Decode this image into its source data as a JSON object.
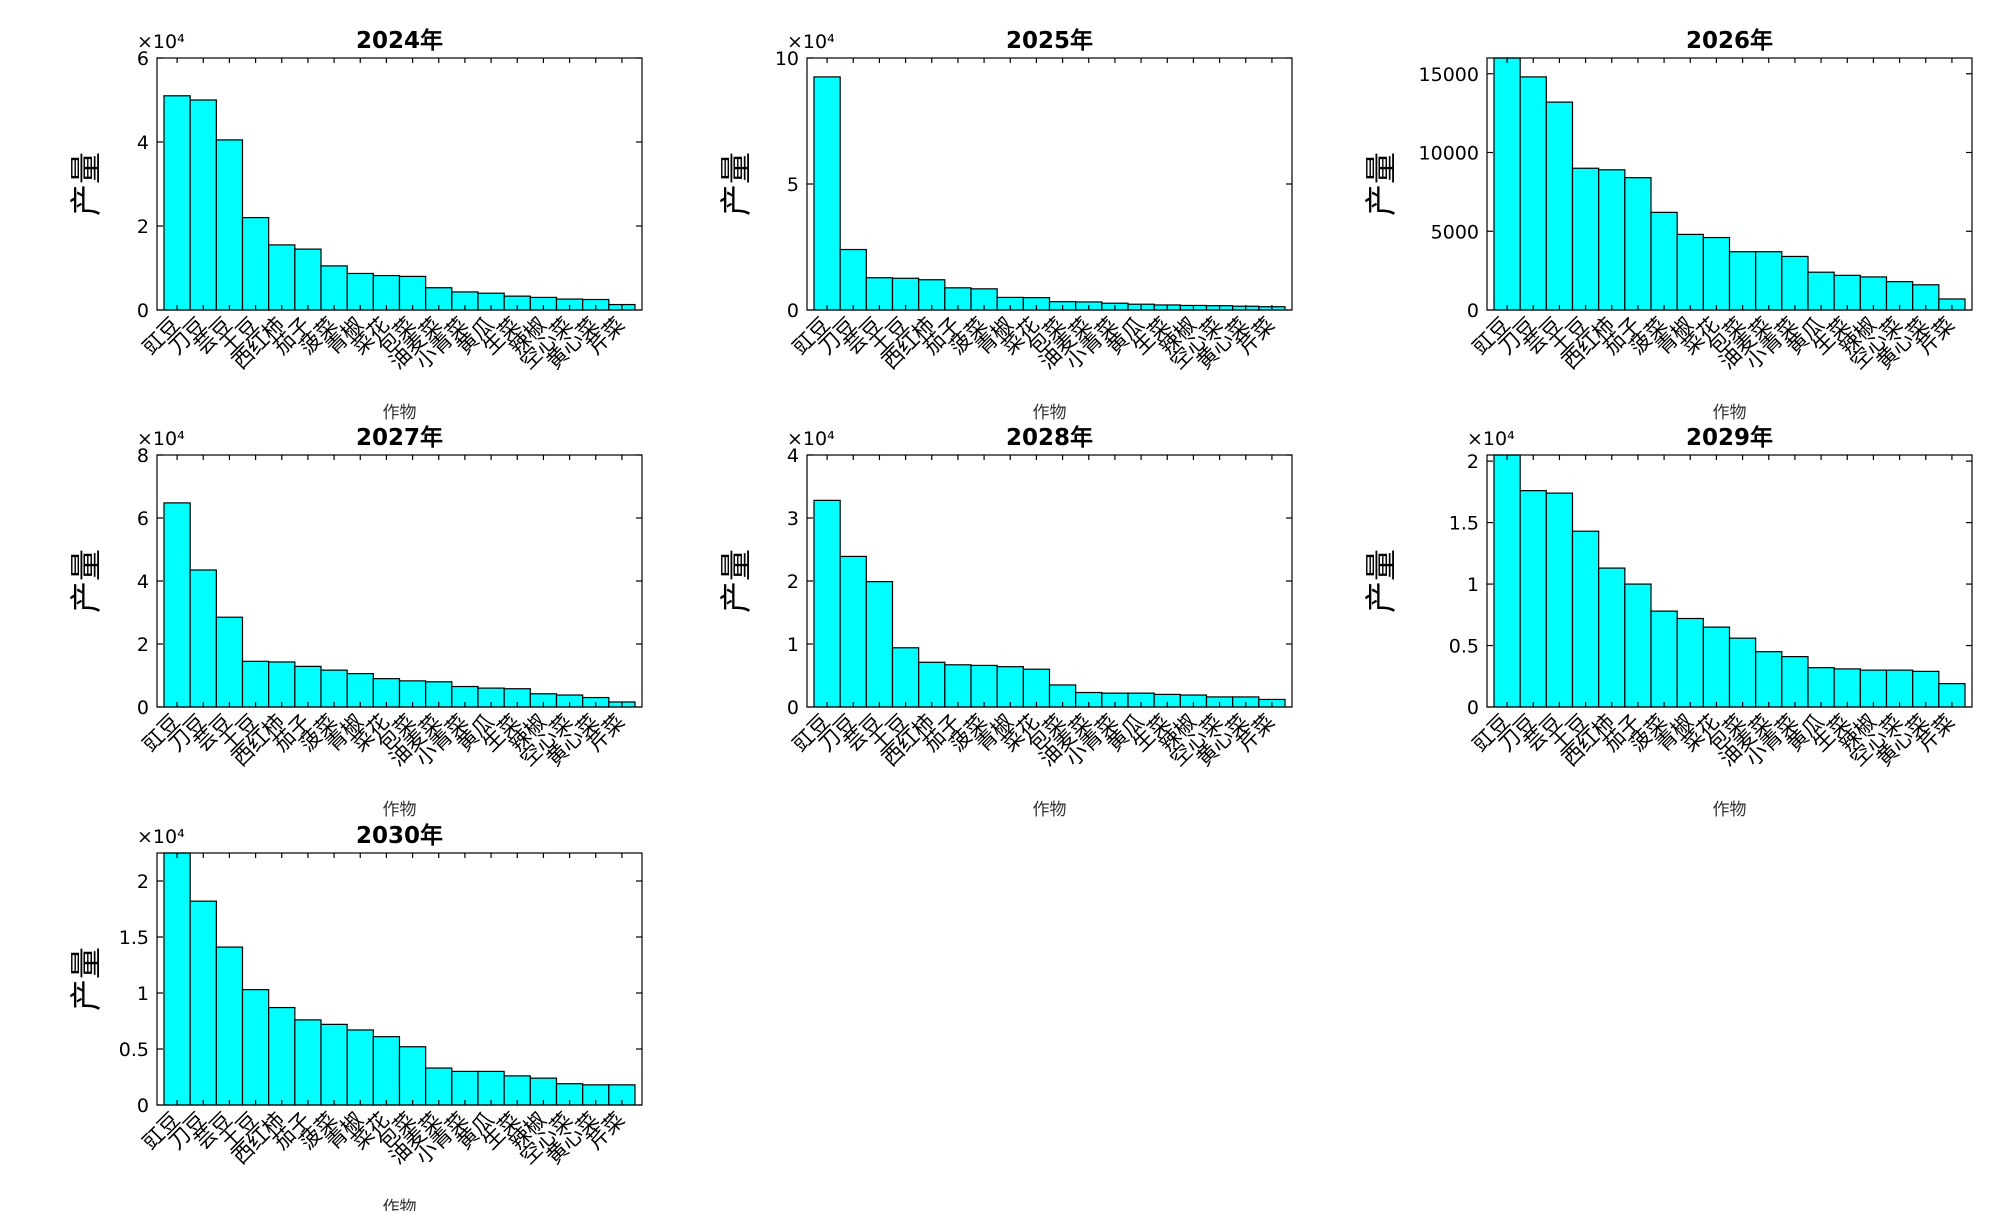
{
  "figure": {
    "background": "#ffffff",
    "bar_color": "#00ffff",
    "edge_color": "#000000"
  },
  "chart_data": [
    {
      "type": "bar",
      "title": "2024年",
      "xlabel": "作物",
      "ylabel": "产量",
      "exponent_label": "×10⁴",
      "categories": [
        "豇豆",
        "刀豆",
        "芸豆",
        "土豆",
        "西红柿",
        "茄子",
        "菠菜",
        "青椒",
        "菜花",
        "包菜",
        "油麦菜",
        "小青菜",
        "黄瓜",
        "生菜",
        "辣椒",
        "空心菜",
        "黄心菜",
        "芹菜"
      ],
      "values": [
        51000,
        50000,
        40500,
        22000,
        15500,
        14500,
        10500,
        8700,
        8200,
        8000,
        5300,
        4300,
        4000,
        3300,
        3000,
        2600,
        2500,
        1300
      ],
      "ylim": [
        0,
        60000
      ],
      "yticks": [
        0,
        20000,
        40000,
        60000
      ],
      "ytick_labels": [
        "0",
        "2",
        "4",
        "6"
      ]
    },
    {
      "type": "bar",
      "title": "2025年",
      "xlabel": "作物",
      "ylabel": "产量",
      "exponent_label": "×10⁴",
      "categories": [
        "豇豆",
        "刀豆",
        "芸豆",
        "土豆",
        "西红柿",
        "茄子",
        "菠菜",
        "青椒",
        "菜花",
        "包菜",
        "油麦菜",
        "小青菜",
        "黄瓜",
        "生菜",
        "辣椒",
        "空心菜",
        "黄心菜",
        "芹菜"
      ],
      "values": [
        92500,
        24000,
        12800,
        12600,
        12000,
        8800,
        8400,
        5000,
        4900,
        3300,
        3200,
        2700,
        2300,
        2000,
        1800,
        1700,
        1500,
        1300
      ],
      "ylim": [
        0,
        100000
      ],
      "yticks": [
        0,
        50000,
        100000
      ],
      "ytick_labels": [
        "0",
        "5",
        "10"
      ]
    },
    {
      "type": "bar",
      "title": "2026年",
      "xlabel": "作物",
      "ylabel": "产量",
      "exponent_label": "",
      "categories": [
        "豇豆",
        "刀豆",
        "芸豆",
        "土豆",
        "西红柿",
        "茄子",
        "菠菜",
        "青椒",
        "菜花",
        "包菜",
        "油麦菜",
        "小青菜",
        "黄瓜",
        "生菜",
        "辣椒",
        "空心菜",
        "黄心菜",
        "芹菜"
      ],
      "values": [
        16000,
        14800,
        13200,
        9000,
        8900,
        8400,
        6200,
        4800,
        4600,
        3700,
        3700,
        3400,
        2400,
        2200,
        2100,
        1800,
        1600,
        700
      ],
      "ylim": [
        0,
        16000
      ],
      "yticks": [
        0,
        5000,
        10000,
        15000
      ],
      "ytick_labels": [
        "0",
        "5000",
        "10000",
        "15000"
      ]
    },
    {
      "type": "bar",
      "title": "2027年",
      "xlabel": "作物",
      "ylabel": "产量",
      "exponent_label": "×10⁴",
      "categories": [
        "豇豆",
        "刀豆",
        "芸豆",
        "土豆",
        "西红柿",
        "茄子",
        "菠菜",
        "青椒",
        "菜花",
        "包菜",
        "油麦菜",
        "小青菜",
        "黄瓜",
        "生菜",
        "辣椒",
        "空心菜",
        "黄心菜",
        "芹菜"
      ],
      "values": [
        64800,
        43500,
        28500,
        14500,
        14300,
        12900,
        11700,
        10600,
        9000,
        8300,
        8000,
        6500,
        6000,
        5800,
        4200,
        3800,
        3000,
        1600
      ],
      "ylim": [
        0,
        80000
      ],
      "yticks": [
        0,
        20000,
        40000,
        60000,
        80000
      ],
      "ytick_labels": [
        "0",
        "2",
        "4",
        "6",
        "8"
      ]
    },
    {
      "type": "bar",
      "title": "2028年",
      "xlabel": "作物",
      "ylabel": "产量",
      "exponent_label": "×10⁴",
      "categories": [
        "豇豆",
        "刀豆",
        "芸豆",
        "土豆",
        "西红柿",
        "茄子",
        "菠菜",
        "青椒",
        "菜花",
        "包菜",
        "油麦菜",
        "小青菜",
        "黄瓜",
        "生菜",
        "辣椒",
        "空心菜",
        "黄心菜",
        "芹菜"
      ],
      "values": [
        32800,
        23900,
        19900,
        9400,
        7100,
        6700,
        6600,
        6400,
        6000,
        3500,
        2300,
        2200,
        2200,
        2000,
        1900,
        1600,
        1600,
        1200
      ],
      "ylim": [
        0,
        40000
      ],
      "yticks": [
        0,
        10000,
        20000,
        30000,
        40000
      ],
      "ytick_labels": [
        "0",
        "1",
        "2",
        "3",
        "4"
      ]
    },
    {
      "type": "bar",
      "title": "2029年",
      "xlabel": "作物",
      "ylabel": "产量",
      "exponent_label": "×10⁴",
      "categories": [
        "豇豆",
        "刀豆",
        "芸豆",
        "土豆",
        "西红柿",
        "茄子",
        "菠菜",
        "青椒",
        "菜花",
        "包菜",
        "油麦菜",
        "小青菜",
        "黄瓜",
        "生菜",
        "辣椒",
        "空心菜",
        "黄心菜",
        "芹菜"
      ],
      "values": [
        20500,
        17600,
        17400,
        14300,
        11300,
        10000,
        7800,
        7200,
        6500,
        5600,
        4500,
        4100,
        3200,
        3100,
        3000,
        3000,
        2900,
        1900
      ],
      "ylim": [
        0,
        20500
      ],
      "yticks": [
        0,
        5000,
        10000,
        15000,
        20000
      ],
      "ytick_labels": [
        "0",
        "0.5",
        "1",
        "1.5",
        "2"
      ]
    },
    {
      "type": "bar",
      "title": "2030年",
      "xlabel": "作物",
      "ylabel": "产量",
      "exponent_label": "×10⁴",
      "categories": [
        "豇豆",
        "刀豆",
        "芸豆",
        "土豆",
        "西红柿",
        "茄子",
        "菠菜",
        "青椒",
        "菜花",
        "包菜",
        "油麦菜",
        "小青菜",
        "黄瓜",
        "生菜",
        "辣椒",
        "空心菜",
        "黄心菜",
        "芹菜"
      ],
      "values": [
        22500,
        18200,
        14100,
        10300,
        8700,
        7600,
        7200,
        6700,
        6100,
        5200,
        3300,
        3000,
        3000,
        2600,
        2400,
        1900,
        1800,
        1800
      ],
      "ylim": [
        0,
        22500
      ],
      "yticks": [
        0,
        5000,
        10000,
        15000,
        20000
      ],
      "ytick_labels": [
        "0",
        "0.5",
        "1",
        "1.5",
        "2"
      ]
    }
  ]
}
